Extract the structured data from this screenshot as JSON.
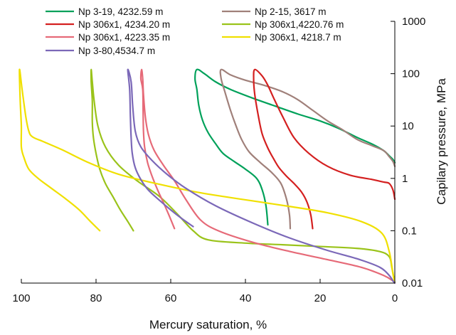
{
  "chart_data": {
    "type": "line",
    "title": "",
    "xlabel": "Mercury saturation, %",
    "ylabel": "Capilary pressure, MPa",
    "xlim": [
      100,
      0
    ],
    "x_reversed": true,
    "ylim": [
      0.01,
      1000
    ],
    "y_scale": "log",
    "y_axis_side": "right",
    "grid": false,
    "legend_position": "top",
    "x_ticks": [
      "100",
      "80",
      "60",
      "40",
      "20",
      "0"
    ],
    "y_ticks": [
      "0.01",
      "0.1",
      "1",
      "10",
      "100",
      "1000"
    ],
    "series": [
      {
        "name": "Np 3-19, 4232.59 m",
        "color": "#00a15a",
        "points": [
          [
            34,
            0.13
          ],
          [
            34.5,
            0.3
          ],
          [
            35.5,
            0.6
          ],
          [
            37,
            1.0
          ],
          [
            40,
            1.5
          ],
          [
            43,
            2.1
          ],
          [
            46,
            3.0
          ],
          [
            48,
            4.6
          ],
          [
            50,
            7.5
          ],
          [
            51.5,
            13
          ],
          [
            52.5,
            25
          ],
          [
            53,
            50
          ],
          [
            53.5,
            80
          ],
          [
            53,
            120
          ],
          [
            51,
            100
          ],
          [
            48,
            70
          ],
          [
            44,
            50
          ],
          [
            38,
            34
          ],
          [
            32,
            24
          ],
          [
            26,
            17
          ],
          [
            20,
            12.5
          ],
          [
            15,
            9
          ],
          [
            10,
            6
          ],
          [
            6,
            4.5
          ],
          [
            3,
            3.4
          ],
          [
            1.5,
            2.7
          ],
          [
            0.5,
            2.3
          ],
          [
            0,
            2
          ]
        ]
      },
      {
        "name": "Np 2-15, 3617 m",
        "color": "#a0807a",
        "points": [
          [
            28,
            0.11
          ],
          [
            28.2,
            0.2
          ],
          [
            29,
            0.4
          ],
          [
            30.5,
            0.8
          ],
          [
            33,
            1.3
          ],
          [
            36,
            2.0
          ],
          [
            39,
            3.2
          ],
          [
            41,
            5.5
          ],
          [
            42.5,
            10
          ],
          [
            44,
            20
          ],
          [
            45.5,
            45
          ],
          [
            46.5,
            80
          ],
          [
            46.5,
            120
          ],
          [
            44,
            95
          ],
          [
            40,
            75
          ],
          [
            35,
            60
          ],
          [
            30,
            45
          ],
          [
            26,
            32
          ],
          [
            22,
            20
          ],
          [
            18,
            12.5
          ],
          [
            14,
            8.5
          ],
          [
            10,
            5.5
          ],
          [
            6,
            4.2
          ],
          [
            3,
            3.4
          ],
          [
            1.5,
            2.6
          ],
          [
            0.5,
            2.1
          ],
          [
            0,
            1.7
          ]
        ]
      },
      {
        "name": "Np 306x1, 4234.20 m",
        "color": "#d42020",
        "points": [
          [
            22,
            0.11
          ],
          [
            22.5,
            0.2
          ],
          [
            23.5,
            0.35
          ],
          [
            25,
            0.55
          ],
          [
            27,
            0.8
          ],
          [
            29,
            1.1
          ],
          [
            31,
            1.6
          ],
          [
            32.5,
            2.4
          ],
          [
            34,
            3.8
          ],
          [
            35.5,
            7
          ],
          [
            36.5,
            15
          ],
          [
            37.5,
            40
          ],
          [
            37.8,
            80
          ],
          [
            37.5,
            120
          ],
          [
            35.5,
            90
          ],
          [
            34,
            60
          ],
          [
            32.5,
            35
          ],
          [
            30,
            15
          ],
          [
            27,
            6
          ],
          [
            23,
            3
          ],
          [
            18,
            1.7
          ],
          [
            12,
            1.15
          ],
          [
            6,
            0.95
          ],
          [
            3,
            0.85
          ],
          [
            1.5,
            0.8
          ],
          [
            0.5,
            0.6
          ],
          [
            0,
            0.4
          ]
        ]
      },
      {
        "name": "Np 306x1,4220.76 m",
        "color": "#9ac31a",
        "points": [
          [
            70,
            0.1
          ],
          [
            71.5,
            0.15
          ],
          [
            73.5,
            0.25
          ],
          [
            75.5,
            0.45
          ],
          [
            77.5,
            0.8
          ],
          [
            79,
            1.5
          ],
          [
            80,
            3
          ],
          [
            80.7,
            6
          ],
          [
            81,
            12
          ],
          [
            81,
            30
          ],
          [
            81.3,
            70
          ],
          [
            81.3,
            120
          ],
          [
            81,
            70
          ],
          [
            80.5,
            30
          ],
          [
            79.5,
            10
          ],
          [
            77.5,
            4
          ],
          [
            74,
            1.8
          ],
          [
            69,
            0.9
          ],
          [
            63,
            0.45
          ],
          [
            58,
            0.2
          ],
          [
            54,
            0.1
          ],
          [
            50,
            0.067
          ],
          [
            40,
            0.058
          ],
          [
            30,
            0.054
          ],
          [
            20,
            0.05
          ],
          [
            10,
            0.046
          ],
          [
            4,
            0.04
          ],
          [
            1.5,
            0.032
          ],
          [
            0.8,
            0.02
          ],
          [
            0,
            0.01
          ]
        ]
      },
      {
        "name": "Np 306x1, 4223.35 m",
        "color": "#e66a78",
        "points": [
          [
            59,
            0.11
          ],
          [
            60.5,
            0.2
          ],
          [
            62,
            0.35
          ],
          [
            63.5,
            0.6
          ],
          [
            65,
            1.1
          ],
          [
            66.2,
            2
          ],
          [
            67,
            4
          ],
          [
            67.3,
            8
          ],
          [
            67.4,
            20
          ],
          [
            67.5,
            50
          ],
          [
            68,
            80
          ],
          [
            67.8,
            120
          ],
          [
            67.5,
            80
          ],
          [
            67.3,
            40
          ],
          [
            66.8,
            15
          ],
          [
            66,
            7
          ],
          [
            64.5,
            3.5
          ],
          [
            62,
            1.8
          ],
          [
            59,
            0.9
          ],
          [
            56,
            0.4
          ],
          [
            52,
            0.16
          ],
          [
            47,
            0.098
          ],
          [
            38,
            0.06
          ],
          [
            28,
            0.04
          ],
          [
            18,
            0.028
          ],
          [
            9,
            0.02
          ],
          [
            3,
            0.014
          ],
          [
            0.5,
            0.011
          ],
          [
            0,
            0.01
          ]
        ]
      },
      {
        "name": "Np 306x1, 4218.7 m",
        "color": "#f0e000",
        "points": [
          [
            79,
            0.1
          ],
          [
            81.5,
            0.15
          ],
          [
            84.5,
            0.25
          ],
          [
            88,
            0.4
          ],
          [
            92,
            0.65
          ],
          [
            95.5,
            1
          ],
          [
            98,
            1.5
          ],
          [
            99.3,
            2.5
          ],
          [
            100,
            4
          ],
          [
            100,
            10
          ],
          [
            100.3,
            30
          ],
          [
            100.5,
            120
          ],
          [
            99.8,
            50
          ],
          [
            98.8,
            15
          ],
          [
            98,
            8
          ],
          [
            97,
            6.2
          ],
          [
            94,
            5
          ],
          [
            89,
            3.5
          ],
          [
            82,
            2
          ],
          [
            74,
            1.2
          ],
          [
            64,
            0.8
          ],
          [
            52,
            0.53
          ],
          [
            40,
            0.39
          ],
          [
            28,
            0.29
          ],
          [
            18,
            0.22
          ],
          [
            9,
            0.15
          ],
          [
            3.5,
            0.09
          ],
          [
            1.5,
            0.04
          ],
          [
            0.5,
            0.015
          ],
          [
            0,
            0.01
          ]
        ]
      },
      {
        "name": "Np 3-80,4534.7 m",
        "color": "#7b68b8",
        "points": [
          [
            54,
            0.12
          ],
          [
            57,
            0.17
          ],
          [
            60,
            0.25
          ],
          [
            63,
            0.38
          ],
          [
            66,
            0.6
          ],
          [
            68,
            0.95
          ],
          [
            69.5,
            1.6
          ],
          [
            70.3,
            3
          ],
          [
            70.6,
            6
          ],
          [
            70.8,
            15
          ],
          [
            71,
            50
          ],
          [
            71.5,
            120
          ],
          [
            70.6,
            70
          ],
          [
            70.2,
            25
          ],
          [
            69.5,
            8
          ],
          [
            68,
            4
          ],
          [
            65,
            2.2
          ],
          [
            61,
            1.2
          ],
          [
            56,
            0.65
          ],
          [
            48,
            0.3
          ],
          [
            38,
            0.14
          ],
          [
            28,
            0.072
          ],
          [
            18,
            0.042
          ],
          [
            10,
            0.029
          ],
          [
            4,
            0.02
          ],
          [
            1.5,
            0.014
          ],
          [
            0.5,
            0.011
          ],
          [
            0,
            0.01
          ]
        ]
      }
    ]
  }
}
